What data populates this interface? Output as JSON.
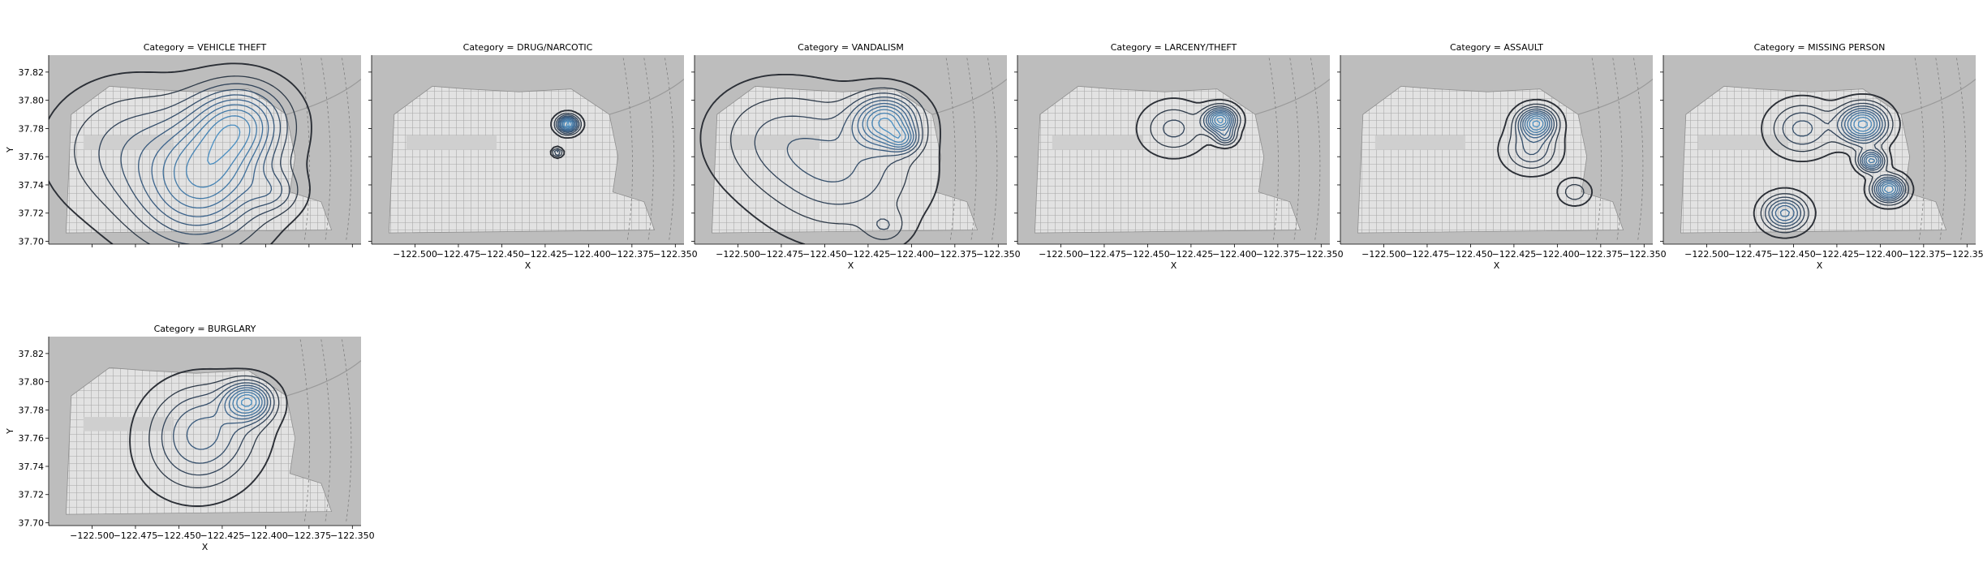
{
  "chart_data": {
    "type": "kde-facet-grid",
    "facet_title_prefix": "Category = ",
    "xlabel": "X",
    "ylabel": "Y",
    "xlim": [
      -122.525,
      -122.345
    ],
    "ylim": [
      37.698,
      37.832
    ],
    "xticks": [
      -122.5,
      -122.475,
      -122.45,
      -122.425,
      -122.4,
      -122.375,
      -122.35
    ],
    "xtick_labels": [
      "−122.500",
      "−122.475",
      "−122.450",
      "−122.425",
      "−122.400",
      "−122.375",
      "−122.350"
    ],
    "yticks": [
      37.7,
      37.72,
      37.74,
      37.76,
      37.78,
      37.8,
      37.82
    ],
    "ytick_labels": [
      "37.70",
      "37.72",
      "37.74",
      "37.76",
      "37.78",
      "37.80",
      "37.82"
    ],
    "background": "basemap-grayscale-san-francisco",
    "colormap": "Blues_d",
    "colors": {
      "outer": "#2b2f36",
      "mid": "#3a5f86",
      "inner": "#4a8fc2",
      "map": "#bdbdbd",
      "land": "#d6d6d6"
    },
    "panels": [
      {
        "category": "VEHICLE THEFT",
        "peaks": [
          {
            "x": -122.415,
            "y": 37.785,
            "s": 0.018,
            "w": 1.0
          },
          {
            "x": -122.43,
            "y": 37.755,
            "s": 0.022,
            "w": 0.8
          },
          {
            "x": -122.44,
            "y": 37.725,
            "s": 0.025,
            "w": 0.6
          },
          {
            "x": -122.475,
            "y": 37.765,
            "s": 0.03,
            "w": 0.45
          },
          {
            "x": -122.395,
            "y": 37.735,
            "s": 0.01,
            "w": 0.35
          }
        ]
      },
      {
        "category": "DRUG/NARCOTIC",
        "peaks": [
          {
            "x": -122.412,
            "y": 37.783,
            "s": 0.004,
            "w": 1.0
          },
          {
            "x": -122.418,
            "y": 37.763,
            "s": 0.002,
            "w": 0.4
          }
        ]
      },
      {
        "category": "VANDALISM",
        "peaks": [
          {
            "x": -122.415,
            "y": 37.785,
            "s": 0.012,
            "w": 1.0
          },
          {
            "x": -122.405,
            "y": 37.772,
            "s": 0.006,
            "w": 0.5
          },
          {
            "x": -122.44,
            "y": 37.75,
            "s": 0.03,
            "w": 0.4
          },
          {
            "x": -122.48,
            "y": 37.775,
            "s": 0.025,
            "w": 0.25
          },
          {
            "x": -122.415,
            "y": 37.71,
            "s": 0.008,
            "w": 0.2
          }
        ]
      },
      {
        "category": "LARCENY/THEFT",
        "peaks": [
          {
            "x": -122.408,
            "y": 37.786,
            "s": 0.006,
            "w": 1.0
          },
          {
            "x": -122.405,
            "y": 37.774,
            "s": 0.004,
            "w": 0.4
          },
          {
            "x": -122.435,
            "y": 37.78,
            "s": 0.012,
            "w": 0.3
          }
        ]
      },
      {
        "category": "ASSAULT",
        "peaks": [
          {
            "x": -122.412,
            "y": 37.784,
            "s": 0.007,
            "w": 1.0
          },
          {
            "x": -122.415,
            "y": 37.765,
            "s": 0.01,
            "w": 0.4
          },
          {
            "x": -122.39,
            "y": 37.735,
            "s": 0.006,
            "w": 0.25
          }
        ]
      },
      {
        "category": "MISSING PERSON",
        "peaks": [
          {
            "x": -122.41,
            "y": 37.783,
            "s": 0.009,
            "w": 1.0
          },
          {
            "x": -122.405,
            "y": 37.757,
            "s": 0.005,
            "w": 0.8
          },
          {
            "x": -122.395,
            "y": 37.737,
            "s": 0.006,
            "w": 0.95
          },
          {
            "x": -122.455,
            "y": 37.72,
            "s": 0.008,
            "w": 0.7
          },
          {
            "x": -122.445,
            "y": 37.78,
            "s": 0.012,
            "w": 0.4
          }
        ]
      },
      {
        "category": "BURGLARY",
        "peaks": [
          {
            "x": -122.41,
            "y": 37.786,
            "s": 0.009,
            "w": 1.0
          },
          {
            "x": -122.435,
            "y": 37.77,
            "s": 0.02,
            "w": 0.45
          },
          {
            "x": -122.44,
            "y": 37.745,
            "s": 0.02,
            "w": 0.25
          }
        ]
      }
    ]
  }
}
